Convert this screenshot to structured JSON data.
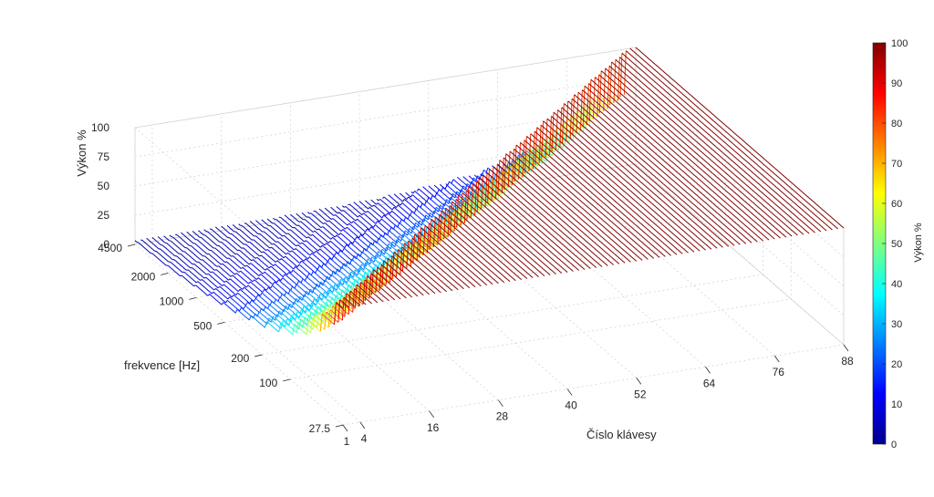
{
  "chart_data": {
    "type": "waterfall-3d",
    "title": "",
    "zlabel": "Výkon %",
    "ylabel": "frekvence [Hz]",
    "xlabel": "Číslo klávesy",
    "zlim": [
      0,
      100
    ],
    "z_ticks": [
      "0",
      "25",
      "50",
      "75",
      "100"
    ],
    "y_ticks": [
      "27.5",
      "100",
      "200",
      "500",
      "1000",
      "2000",
      "4500"
    ],
    "x_ticks": [
      "1",
      "4",
      "16",
      "28",
      "40",
      "52",
      "64",
      "76",
      "88"
    ],
    "key_range": [
      1,
      88
    ],
    "frequency_range_hz": [
      27.5,
      4500
    ],
    "grid": true,
    "colormap": "jet",
    "colorbar": {
      "label": "Výkon %",
      "ticks": [
        "0",
        "10",
        "20",
        "30",
        "40",
        "50",
        "60",
        "70",
        "80",
        "90",
        "100"
      ],
      "range": [
        0,
        100
      ]
    },
    "series_description_values": {
      "keys": 88,
      "power_pct_at_low_freq": 100,
      "power_pct_at_high_freq": 0
    }
  }
}
